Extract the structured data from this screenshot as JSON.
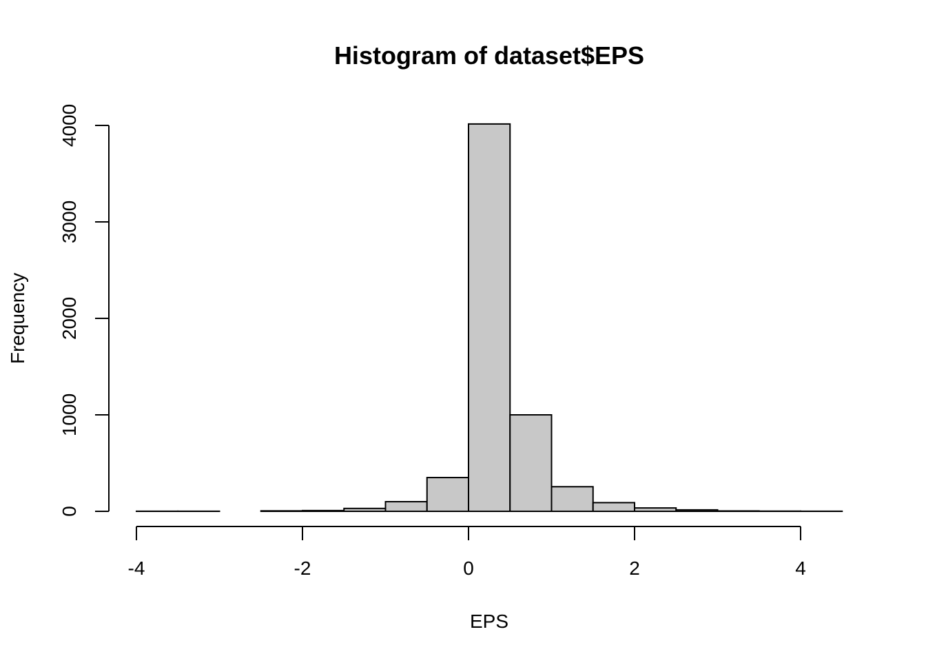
{
  "chart_data": {
    "type": "bar",
    "title": "Histogram of dataset$EPS",
    "xlabel": "EPS",
    "ylabel": "Frequency",
    "xlim": [
      -4,
      4.5
    ],
    "ylim": [
      0,
      4000
    ],
    "x_ticks": [
      -4,
      -2,
      0,
      2,
      4
    ],
    "y_ticks": [
      0,
      1000,
      2000,
      3000,
      4000
    ],
    "bin_edges": [
      -4.0,
      -3.5,
      -3.0,
      -2.5,
      -2.0,
      -1.5,
      -1.0,
      -0.5,
      0.0,
      0.5,
      1.0,
      1.5,
      2.0,
      2.5,
      3.0,
      3.5,
      4.0,
      4.5
    ],
    "values": [
      1,
      1,
      0,
      5,
      8,
      30,
      100,
      350,
      4015,
      1000,
      255,
      90,
      35,
      15,
      4,
      2,
      1
    ],
    "grid": false,
    "legend": "none"
  }
}
